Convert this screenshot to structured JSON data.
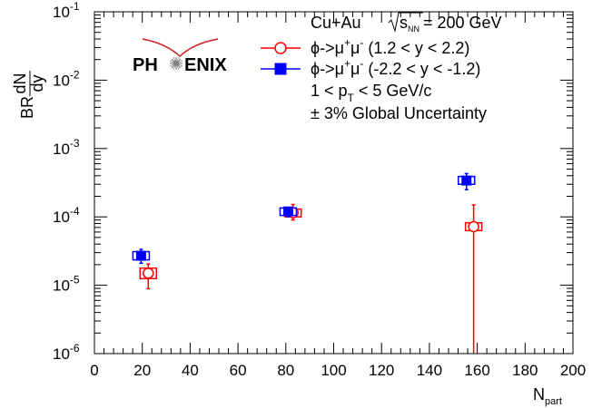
{
  "chart_data": {
    "type": "scatter",
    "xlabel": "N",
    "xlabel_sub": "part",
    "ylabel": {
      "prefix": "BR",
      "frac_num": "dN",
      "frac_den": "dy"
    },
    "xlim": [
      0,
      200
    ],
    "ylim": [
      1e-06,
      0.1
    ],
    "yscale": "log",
    "x_ticks": [
      0,
      20,
      40,
      60,
      80,
      100,
      120,
      140,
      160,
      180,
      200
    ],
    "y_ticks": [
      {
        "base": "10",
        "exp": "-6",
        "value": 1e-06
      },
      {
        "base": "10",
        "exp": "-5",
        "value": 1e-05
      },
      {
        "base": "10",
        "exp": "-4",
        "value": 0.0001
      },
      {
        "base": "10",
        "exp": "-3",
        "value": 0.001
      },
      {
        "base": "10",
        "exp": "-2",
        "value": 0.01
      },
      {
        "base": "10",
        "exp": "-1",
        "value": 0.1
      }
    ],
    "grid": false,
    "legend_position": "top-right",
    "series": [
      {
        "name": "ϕ->μ⁺μ⁻ (1.2 < y < 2.2)",
        "color": "#ff0000",
        "marker": "open-circle",
        "points": [
          {
            "x": 22.5,
            "y": 1.5e-05,
            "ylo": 8.9e-06,
            "yhi": 2.05e-05,
            "syslo": 1.25e-05,
            "syshi": 1.78e-05
          },
          {
            "x": 83.0,
            "y": 0.000115,
            "ylo": 9e-05,
            "yhi": 0.000152,
            "syslo": 0.0001,
            "syshi": 0.00013
          },
          {
            "x": 158.5,
            "y": 7.2e-05,
            "ylo": 1e-07,
            "yhi": 0.00015,
            "syslo": 6.3e-05,
            "syshi": 8.2e-05
          }
        ]
      },
      {
        "name": "ϕ->μ⁺μ⁻ (-2.2 < y < -1.2)",
        "color": "#0000ff",
        "marker": "filled-square",
        "points": [
          {
            "x": 19.5,
            "y": 2.7e-05,
            "ylo": 2.1e-05,
            "yhi": 3.35e-05,
            "syslo": 2.35e-05,
            "syshi": 3.1e-05
          },
          {
            "x": 81.0,
            "y": 0.00012,
            "ylo": 0.0001,
            "yhi": 0.000137,
            "syslo": 0.000105,
            "syshi": 0.000135
          },
          {
            "x": 155.5,
            "y": 0.00034,
            "ylo": 0.00025,
            "yhi": 0.00043,
            "syslo": 0.0003,
            "syshi": 0.00039
          }
        ]
      }
    ]
  },
  "legend": {
    "header_prefix": "Cu+Au ",
    "header_sqrt": "s",
    "header_sqrt_sub": "NN",
    "header_suffix": " = 200 GeV",
    "entry_red": {
      "pre": "ϕ->μ",
      "sup1": "+",
      "mid": "μ",
      "sup2": "-",
      "post": " (1.2 < y < 2.2)"
    },
    "entry_blue": {
      "pre": "ϕ->μ",
      "sup1": "+",
      "mid": "μ",
      "sup2": "-",
      "post": " (-2.2 < y < -1.2)"
    },
    "pt_pre": "1 < p",
    "pt_sub": "T",
    "pt_post": " < 5 GeV/c",
    "global_unc": "± 3% Global Uncertainty"
  },
  "logo": {
    "text_left": "PH",
    "text_right": "ENIX",
    "color": "#cc1f1f"
  }
}
